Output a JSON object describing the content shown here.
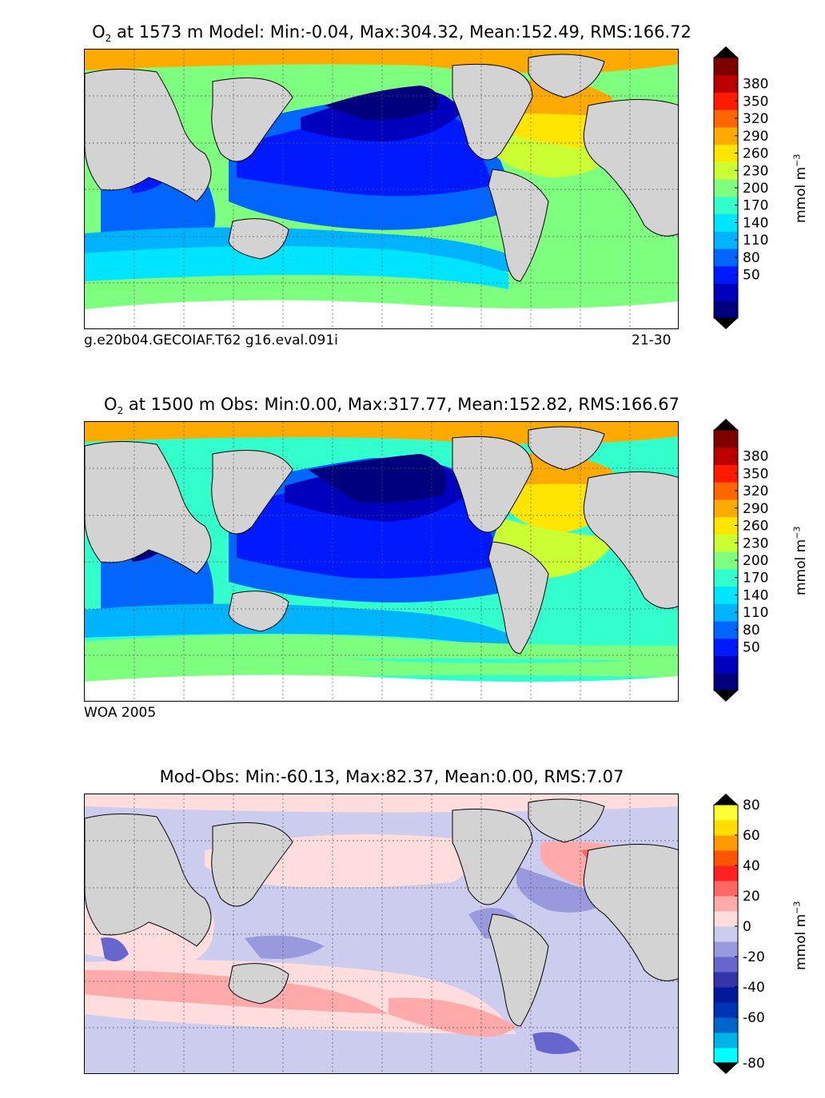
{
  "panels": [
    {
      "title_prefix": "O",
      "title_sub": "2",
      "title_rest": " at 1573 m Model: Min:-0.04, Max:304.32, Mean:152.49, RMS:166.72",
      "footer_left": "g.e20b04.GECOIAF.T62 g16.eval.091i",
      "footer_right": "21-30",
      "scale": "oxygen",
      "colorbar_ticks": [
        "380",
        "350",
        "320",
        "290",
        "260",
        "230",
        "200",
        "170",
        "140",
        "110",
        "80",
        "50"
      ],
      "unit_label": "mmol m",
      "unit_exp": "−3"
    },
    {
      "title_prefix": "O",
      "title_sub": "2",
      "title_rest": " at 1500 m Obs: Min:0.00, Max:317.77, Mean:152.82, RMS:166.67",
      "footer_left": "WOA 2005",
      "footer_right": "",
      "scale": "oxygen",
      "colorbar_ticks": [
        "380",
        "350",
        "320",
        "290",
        "260",
        "230",
        "200",
        "170",
        "140",
        "110",
        "80",
        "50"
      ],
      "unit_label": "mmol m",
      "unit_exp": "−3"
    },
    {
      "title_prefix": "",
      "title_sub": "",
      "title_rest": "Mod-Obs: Min:-60.13, Max:82.37, Mean:0.00, RMS:7.07",
      "footer_left": "",
      "footer_right": "",
      "scale": "difference",
      "colorbar_ticks": [
        "80",
        "60",
        "40",
        "20",
        "0",
        "-20",
        "-40",
        "-60",
        "-80"
      ],
      "unit_label": "mmol m",
      "unit_exp": "−3"
    }
  ],
  "colors": {
    "land": "#d3d3d3",
    "oxygen_levels": [
      "#00007f",
      "#0000bd",
      "#0019ff",
      "#0066ff",
      "#00b3ff",
      "#00e5ff",
      "#33ffcc",
      "#7fff7f",
      "#ccff33",
      "#ffe500",
      "#ffaa00",
      "#ff6600",
      "#ff1a00",
      "#bd0000",
      "#7f0000"
    ],
    "difference_levels": [
      "#00ffff",
      "#00b3e6",
      "#0066cc",
      "#0033b3",
      "#001a99",
      "#3333aa",
      "#6666cc",
      "#9999dd",
      "#ccccee",
      "#ffdddd",
      "#ffaaaa",
      "#ff6666",
      "#ff2222",
      "#ff5500",
      "#ff9900",
      "#ffdd00",
      "#ffff33"
    ]
  }
}
